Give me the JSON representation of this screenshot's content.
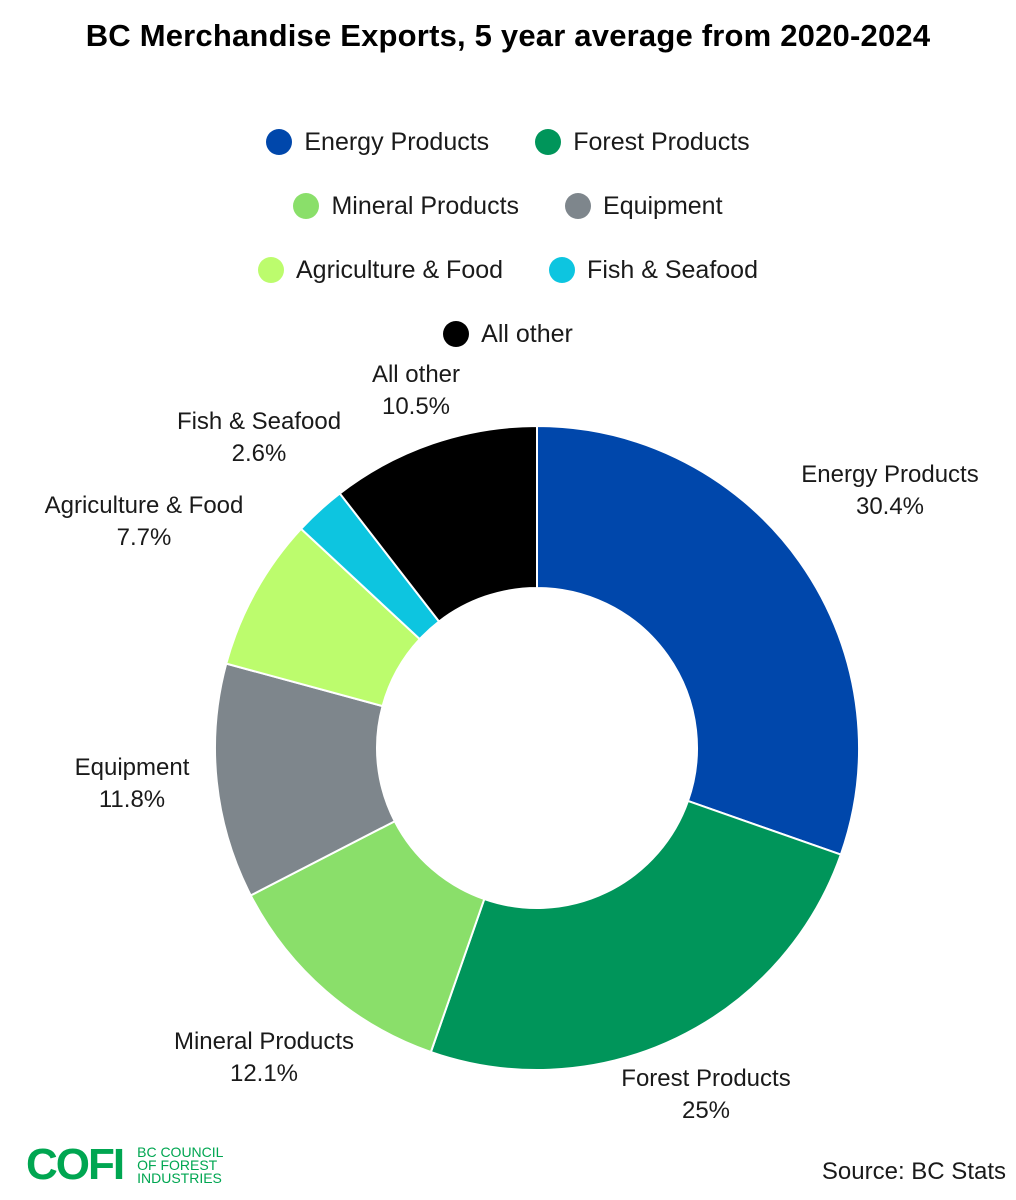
{
  "title": "BC Merchandise Exports, 5 year average from 2020-2024",
  "chart_data": {
    "type": "pie",
    "variant": "donut",
    "title": "BC Merchandise Exports, 5 year average from 2020-2024",
    "legend_position": "top",
    "slices": [
      {
        "name": "Energy Products",
        "value": 30.4,
        "label": "30.4%",
        "color": "#0047ab"
      },
      {
        "name": "Forest Products",
        "value": 25,
        "label": "25%",
        "color": "#00955a"
      },
      {
        "name": "Mineral Products",
        "value": 12.1,
        "label": "12.1%",
        "color": "#8adf6a"
      },
      {
        "name": "Equipment",
        "value": 11.8,
        "label": "11.8%",
        "color": "#7e868c"
      },
      {
        "name": "Agriculture & Food",
        "value": 7.7,
        "label": "7.7%",
        "color": "#bcfc6d"
      },
      {
        "name": "Fish & Seafood",
        "value": 2.6,
        "label": "2.6%",
        "color": "#0dc5e0"
      },
      {
        "name": "All other",
        "value": 10.5,
        "label": "10.5%",
        "color": "#000000"
      }
    ]
  },
  "legend_rows": [
    [
      {
        "label": "Energy Products",
        "color": "#0047ab"
      },
      {
        "label": "Forest Products",
        "color": "#00955a"
      }
    ],
    [
      {
        "label": "Mineral Products",
        "color": "#8adf6a"
      },
      {
        "label": "Equipment",
        "color": "#7e868c"
      }
    ],
    [
      {
        "label": "Agriculture & Food",
        "color": "#bcfc6d"
      },
      {
        "label": "Fish & Seafood",
        "color": "#0dc5e0"
      }
    ],
    [
      {
        "label": "All other",
        "color": "#000000"
      }
    ]
  ],
  "footer": {
    "logo_mark": "COFI",
    "logo_lines": [
      "BC COUNCIL",
      "OF FOREST",
      "INDUSTRIES"
    ],
    "source": "Source: BC Stats"
  }
}
